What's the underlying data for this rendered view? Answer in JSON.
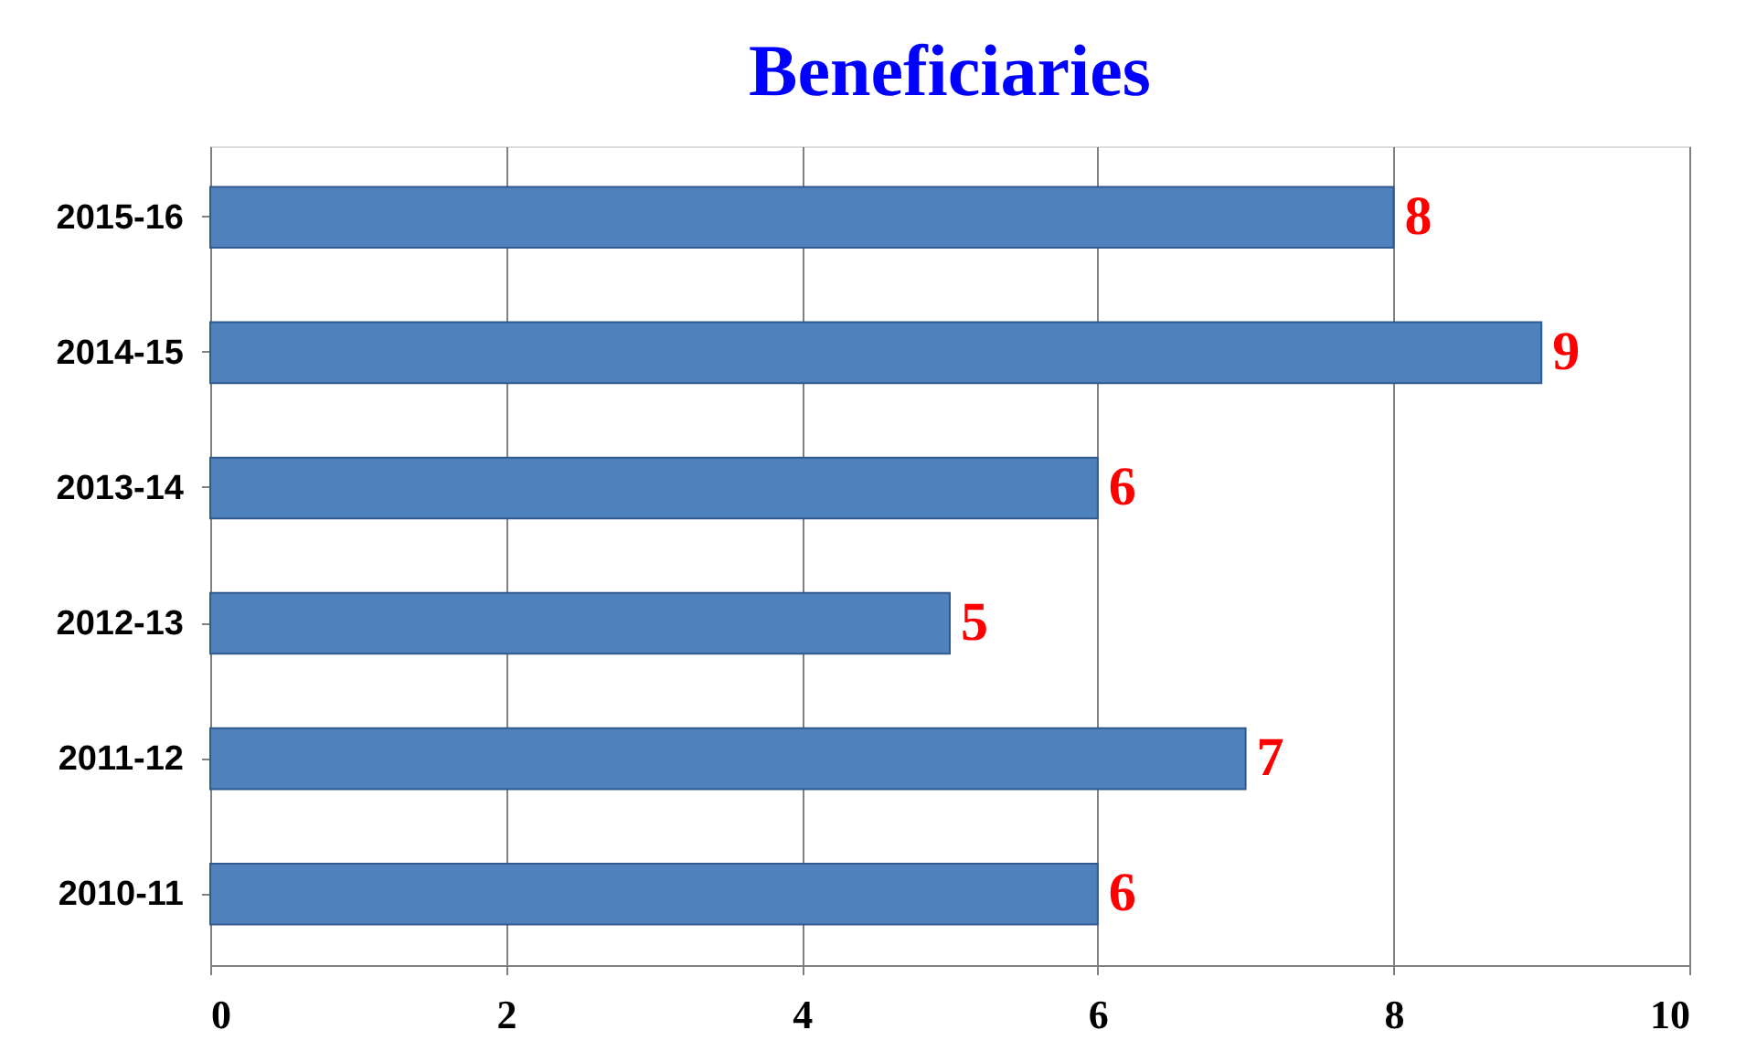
{
  "chart_data": {
    "type": "bar",
    "orientation": "horizontal",
    "title": "Beneficiaries",
    "categories": [
      "2015-16",
      "2014-15",
      "2013-14",
      "2012-13",
      "2011-12",
      "2010-11"
    ],
    "values": [
      8,
      9,
      6,
      5,
      7,
      6
    ],
    "color": "#4f81bd",
    "xlim": [
      0,
      10
    ],
    "xticks": [
      0,
      2,
      4,
      6,
      8,
      10
    ],
    "grid": "x",
    "data_labels": true
  }
}
